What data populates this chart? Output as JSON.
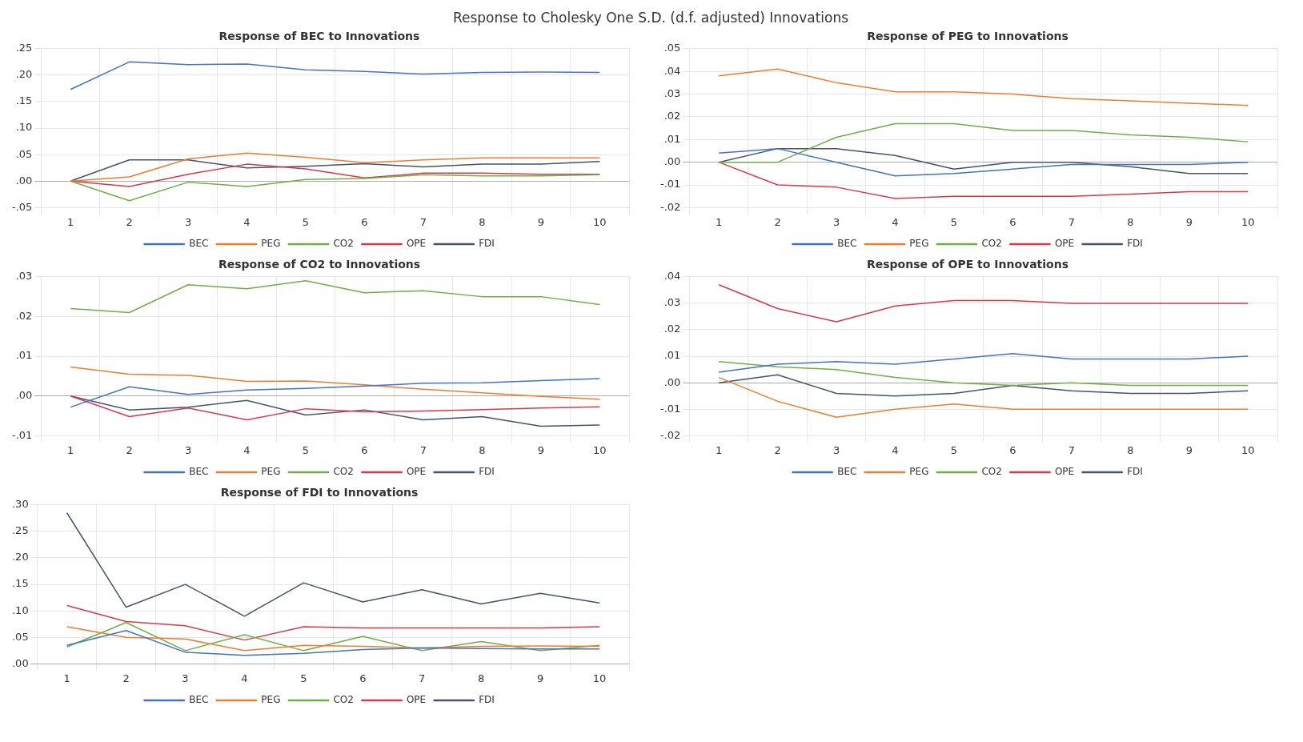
{
  "chart_data": [
    {
      "type": "other",
      "title": "Response to Cholesky One S.D. (d.f. adjusted) Innovations"
    },
    {
      "type": "line",
      "title": "Response of BEC to Innovations",
      "categories": [
        "1",
        "2",
        "3",
        "4",
        "5",
        "6",
        "7",
        "8",
        "9",
        "10"
      ],
      "ylim": [
        -0.05,
        0.25
      ],
      "yticks": [
        {
          "value": -0.05,
          "label": "-.05"
        },
        {
          "value": 0,
          "label": ".00"
        },
        {
          "value": 0.05,
          "label": ".05"
        },
        {
          "value": 0.1,
          "label": ".10"
        },
        {
          "value": 0.15,
          "label": ".15"
        },
        {
          "value": 0.2,
          "label": ".20"
        },
        {
          "value": 0.25,
          "label": ".25"
        }
      ],
      "grid": true,
      "legend": "bottom",
      "marker": "none",
      "series": [
        {
          "name": "BEC",
          "color": "#4472c4",
          "values": [
            0.173,
            0.225,
            0.22,
            0.221,
            0.21,
            0.207,
            0.202,
            0.205,
            0.206,
            0.205
          ]
        },
        {
          "name": "PEG",
          "color": "#ed7d31",
          "values": [
            0,
            0.008,
            0.042,
            0.053,
            0.045,
            0.035,
            0.04,
            0.044,
            0.044,
            0.044
          ]
        },
        {
          "name": "CO2",
          "color": "#70ad47",
          "values": [
            0,
            -0.037,
            -0.002,
            -0.01,
            0.003,
            0.005,
            0.012,
            0.01,
            0.01,
            0.012
          ]
        },
        {
          "name": "OPE",
          "color": "#d63a4a",
          "values": [
            0,
            -0.01,
            0.013,
            0.032,
            0.023,
            0.006,
            0.015,
            0.015,
            0.013,
            0.013
          ]
        },
        {
          "name": "FDI",
          "color": "#44546a",
          "values": [
            0,
            0.04,
            0.04,
            0.025,
            0.028,
            0.033,
            0.027,
            0.032,
            0.032,
            0.037
          ]
        }
      ]
    },
    {
      "type": "line",
      "title": "Response of PEG to Innovations",
      "categories": [
        "1",
        "2",
        "3",
        "4",
        "5",
        "6",
        "7",
        "8",
        "9",
        "10"
      ],
      "ylim": [
        -0.02,
        0.05
      ],
      "yticks": [
        {
          "value": -0.02,
          "label": "-.02"
        },
        {
          "value": -0.01,
          "label": "-.01"
        },
        {
          "value": 0,
          "label": ".00"
        },
        {
          "value": 0.01,
          "label": ".01"
        },
        {
          "value": 0.02,
          "label": ".02"
        },
        {
          "value": 0.03,
          "label": ".03"
        },
        {
          "value": 0.04,
          "label": ".04"
        },
        {
          "value": 0.05,
          "label": ".05"
        }
      ],
      "grid": true,
      "legend": "bottom",
      "marker": "none",
      "series": [
        {
          "name": "BEC",
          "color": "#4472c4",
          "values": [
            0.004,
            0.006,
            0.0,
            -0.006,
            -0.005,
            -0.003,
            -0.001,
            -0.001,
            -0.001,
            0.0
          ]
        },
        {
          "name": "PEG",
          "color": "#ed7d31",
          "values": [
            0.038,
            0.041,
            0.035,
            0.031,
            0.031,
            0.03,
            0.028,
            0.027,
            0.026,
            0.025
          ]
        },
        {
          "name": "CO2",
          "color": "#70ad47",
          "values": [
            0.0,
            0.0,
            0.011,
            0.017,
            0.017,
            0.014,
            0.014,
            0.012,
            0.011,
            0.009
          ]
        },
        {
          "name": "OPE",
          "color": "#d63a4a",
          "values": [
            0.0,
            -0.01,
            -0.011,
            -0.016,
            -0.015,
            -0.015,
            -0.015,
            -0.014,
            -0.013,
            -0.013
          ]
        },
        {
          "name": "FDI",
          "color": "#44546a",
          "values": [
            0.0,
            0.006,
            0.006,
            0.003,
            -0.003,
            0.0,
            0.0,
            -0.002,
            -0.005,
            -0.005
          ]
        }
      ]
    },
    {
      "type": "line",
      "title": "Response of CO2 to Innovations",
      "categories": [
        "1",
        "2",
        "3",
        "4",
        "5",
        "6",
        "7",
        "8",
        "9",
        "10"
      ],
      "ylim": [
        -0.01,
        0.03
      ],
      "yticks": [
        {
          "value": -0.01,
          "label": "-.01"
        },
        {
          "value": 0,
          "label": ".00"
        },
        {
          "value": 0.01,
          "label": ".01"
        },
        {
          "value": 0.02,
          "label": ".02"
        },
        {
          "value": 0.03,
          "label": ".03"
        }
      ],
      "grid": true,
      "legend": "bottom",
      "marker": "none",
      "series": [
        {
          "name": "BEC",
          "color": "#4472c4",
          "values": [
            -0.0028,
            0.0023,
            0.0004,
            0.0015,
            0.0019,
            0.0025,
            0.0032,
            0.0033,
            0.0039,
            0.0044
          ]
        },
        {
          "name": "PEG",
          "color": "#ed7d31",
          "values": [
            0.0073,
            0.0055,
            0.0052,
            0.0037,
            0.0038,
            0.0028,
            0.0017,
            0.0008,
            -0.0001,
            -0.0008
          ]
        },
        {
          "name": "CO2",
          "color": "#70ad47",
          "values": [
            0.022,
            0.021,
            0.028,
            0.027,
            0.029,
            0.026,
            0.0265,
            0.025,
            0.025,
            0.023
          ]
        },
        {
          "name": "OPE",
          "color": "#d63a4a",
          "values": [
            0,
            -0.0052,
            -0.003,
            -0.006,
            -0.0032,
            -0.004,
            -0.0038,
            -0.0034,
            -0.003,
            -0.0027
          ]
        },
        {
          "name": "FDI",
          "color": "#44546a",
          "values": [
            0,
            -0.0035,
            -0.0028,
            -0.0011,
            -0.0048,
            -0.0035,
            -0.006,
            -0.0052,
            -0.0076,
            -0.0073
          ]
        }
      ]
    },
    {
      "type": "line",
      "title": "Response of OPE to Innovations",
      "categories": [
        "1",
        "2",
        "3",
        "4",
        "5",
        "6",
        "7",
        "8",
        "9",
        "10"
      ],
      "ylim": [
        -0.02,
        0.04
      ],
      "yticks": [
        {
          "value": -0.02,
          "label": "-.02"
        },
        {
          "value": -0.01,
          "label": "-.01"
        },
        {
          "value": 0,
          "label": ".00"
        },
        {
          "value": 0.01,
          "label": ".01"
        },
        {
          "value": 0.02,
          "label": ".02"
        },
        {
          "value": 0.03,
          "label": ".03"
        },
        {
          "value": 0.04,
          "label": ".04"
        }
      ],
      "grid": true,
      "legend": "bottom",
      "marker": "none",
      "series": [
        {
          "name": "BEC",
          "color": "#4472c4",
          "values": [
            0.004,
            0.007,
            0.008,
            0.007,
            0.009,
            0.011,
            0.009,
            0.009,
            0.009,
            0.01
          ]
        },
        {
          "name": "PEG",
          "color": "#ed7d31",
          "values": [
            0.002,
            -0.007,
            -0.013,
            -0.01,
            -0.008,
            -0.01,
            -0.01,
            -0.01,
            -0.01,
            -0.01
          ]
        },
        {
          "name": "CO2",
          "color": "#70ad47",
          "values": [
            0.008,
            0.006,
            0.005,
            0.002,
            0.0,
            -0.001,
            0.0,
            -0.001,
            -0.001,
            -0.001
          ]
        },
        {
          "name": "OPE",
          "color": "#d63a4a",
          "values": [
            0.037,
            0.028,
            0.023,
            0.029,
            0.031,
            0.031,
            0.03,
            0.03,
            0.03,
            0.03
          ]
        },
        {
          "name": "FDI",
          "color": "#44546a",
          "values": [
            0.0,
            0.003,
            -0.004,
            -0.005,
            -0.004,
            -0.001,
            -0.003,
            -0.004,
            -0.004,
            -0.003
          ]
        }
      ]
    },
    {
      "type": "line",
      "title": "Response of FDI to Innovations",
      "categories": [
        "1",
        "2",
        "3",
        "4",
        "5",
        "6",
        "7",
        "8",
        "9",
        "10"
      ],
      "ylim": [
        0,
        0.3
      ],
      "yticks": [
        {
          "value": 0,
          "label": ".00"
        },
        {
          "value": 0.05,
          "label": ".05"
        },
        {
          "value": 0.1,
          "label": ".10"
        },
        {
          "value": 0.15,
          "label": ".15"
        },
        {
          "value": 0.2,
          "label": ".20"
        },
        {
          "value": 0.25,
          "label": ".25"
        },
        {
          "value": 0.3,
          "label": ".30"
        }
      ],
      "grid": true,
      "legend": "bottom",
      "marker": "none",
      "series": [
        {
          "name": "BEC",
          "color": "#4472c4",
          "values": [
            0.035,
            0.063,
            0.022,
            0.016,
            0.02,
            0.027,
            0.03,
            0.029,
            0.028,
            0.028
          ]
        },
        {
          "name": "PEG",
          "color": "#ed7d31",
          "values": [
            0.07,
            0.05,
            0.047,
            0.025,
            0.035,
            0.033,
            0.03,
            0.033,
            0.034,
            0.033
          ]
        },
        {
          "name": "CO2",
          "color": "#70ad47",
          "values": [
            0.032,
            0.078,
            0.025,
            0.055,
            0.025,
            0.052,
            0.025,
            0.042,
            0.025,
            0.035
          ]
        },
        {
          "name": "OPE",
          "color": "#d63a4a",
          "values": [
            0.11,
            0.08,
            0.072,
            0.045,
            0.07,
            0.068,
            0.068,
            0.068,
            0.068,
            0.07
          ]
        },
        {
          "name": "FDI",
          "color": "#44546a",
          "values": [
            0.285,
            0.107,
            0.15,
            0.09,
            0.153,
            0.117,
            0.14,
            0.113,
            0.133,
            0.115
          ]
        }
      ]
    }
  ]
}
